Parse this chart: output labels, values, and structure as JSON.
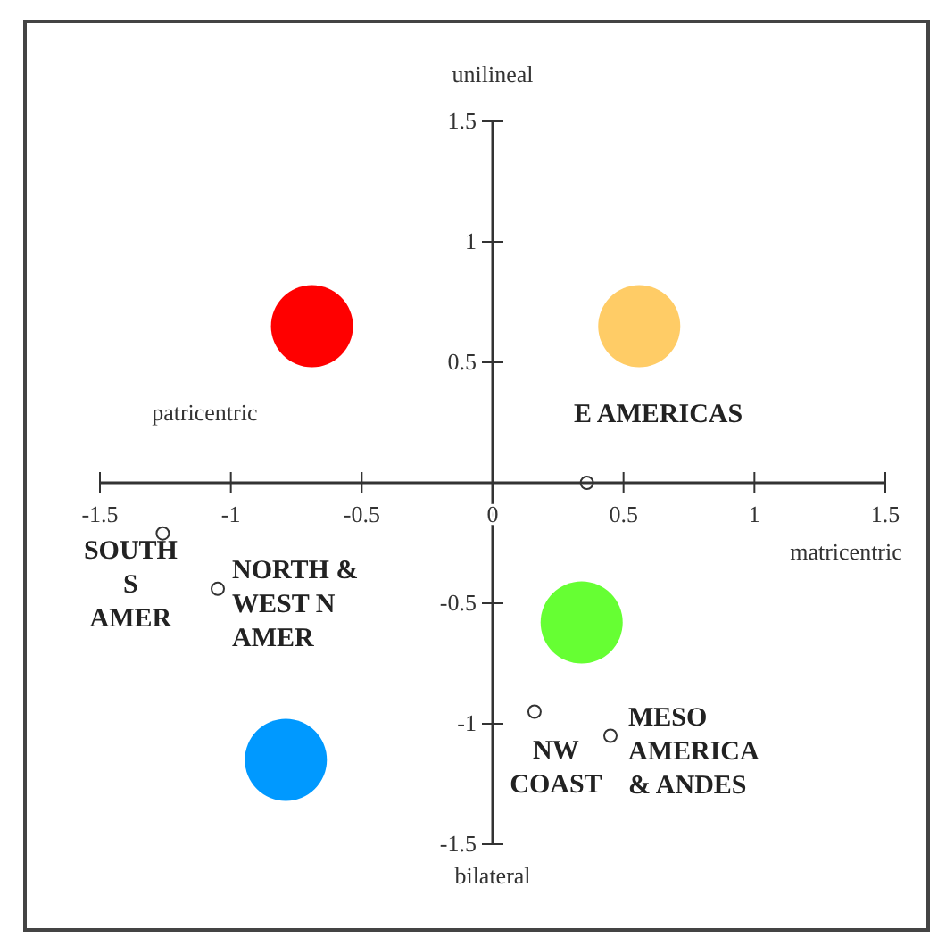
{
  "chart_data": {
    "type": "scatter",
    "xlabel": "matricentric",
    "ylabel": "unilineal",
    "xlim": [
      -1.5,
      1.5
    ],
    "ylim": [
      -1.5,
      1.5
    ],
    "xticks": [
      -1.5,
      -1,
      -0.5,
      0,
      0.5,
      1,
      1.5
    ],
    "yticks": [
      -1.5,
      -1,
      -0.5,
      {
        "value": 0,
        "label": null
      },
      0.5,
      1,
      1.5
    ],
    "grid": false,
    "marker": "circle",
    "series": [
      {
        "color": "#333333",
        "x": [
          0.36,
          -1.26,
          -1.05,
          0.16,
          0.45
        ],
        "values": [
          0,
          -0.21,
          -0.44,
          -0.95,
          -1.05
        ]
      },
      {
        "x": [
          -0.69,
          0.56,
          0.34,
          -0.79
        ],
        "values": [
          0.65,
          0.65,
          -0.58,
          -1.15
        ],
        "colors": [
          "#ff0000",
          "#ffcc66",
          "#66ff33",
          "#0099ff"
        ]
      }
    ],
    "annotations": [
      "patricentric",
      "bilateral",
      {
        "text": "E AMERICAS",
        "x": 0.36,
        "y": 0
      },
      {
        "text": "SOUTH\nS\nAMER",
        "x": -1.26,
        "y": -0.21
      },
      {
        "text": "NORTH &\nWEST N\nAMER",
        "x": -1.05,
        "y": -0.44
      },
      {
        "text": "NW\nCOAST",
        "x": 0.16,
        "y": -0.95
      },
      {
        "text": "MESO\nAMERICA\n& ANDES",
        "x": 0.45,
        "y": -1.05
      }
    ]
  }
}
